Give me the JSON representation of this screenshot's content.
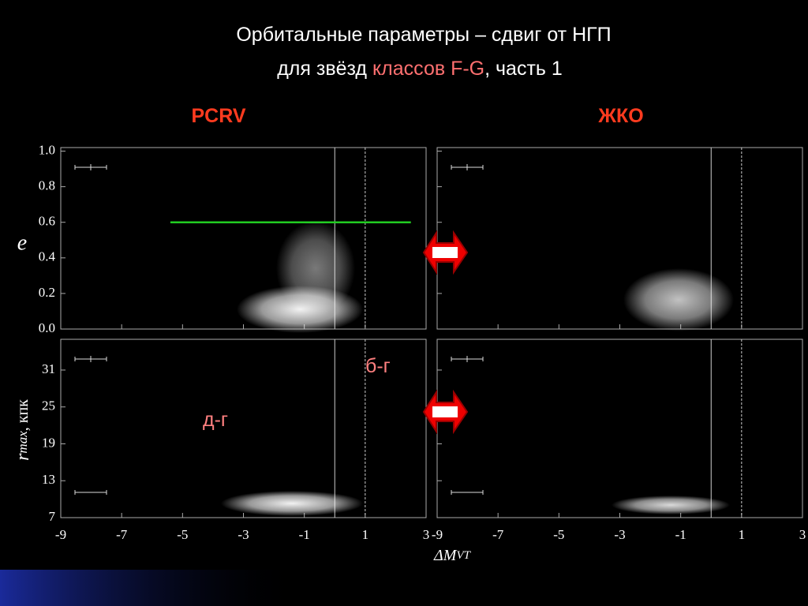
{
  "title": {
    "line1": "Орбитальные параметры – сдвиг от НГП",
    "line2_pre": "для звёзд ",
    "line2_highlight": "классов F-G",
    "line2_post": ", часть 1"
  },
  "panels": {
    "left_label": "PCRV",
    "right_label": "ЖКО"
  },
  "axes": {
    "e_label": "e",
    "r_label_main": "r",
    "r_label_sub": "max",
    "r_label_unit": ", кпк",
    "x_label_main": "ΔM",
    "x_label_sub": "VT",
    "xlim": [
      -9,
      3
    ],
    "xticks": [
      -9,
      -7,
      -5,
      -3,
      -1,
      1,
      3
    ],
    "elim": [
      0,
      1.02
    ],
    "eticks": [
      {
        "value": 0,
        "label": "0.0"
      },
      0.2,
      0.4,
      0.6,
      0.8,
      {
        "value": 1,
        "label": "1.0"
      }
    ],
    "rlim": [
      7,
      36
    ],
    "rticks": [
      7,
      13,
      19,
      25,
      31
    ]
  },
  "reference_lines": [
    {
      "x": 0,
      "style": "solid"
    },
    {
      "x": 1,
      "style": "dashed"
    }
  ],
  "green_line": {
    "y": 0.6,
    "x": [
      -5.4,
      2.5
    ],
    "color": "#22cc22"
  },
  "annotations": {
    "b_g": "б-г",
    "d_g": "д-г"
  }
}
